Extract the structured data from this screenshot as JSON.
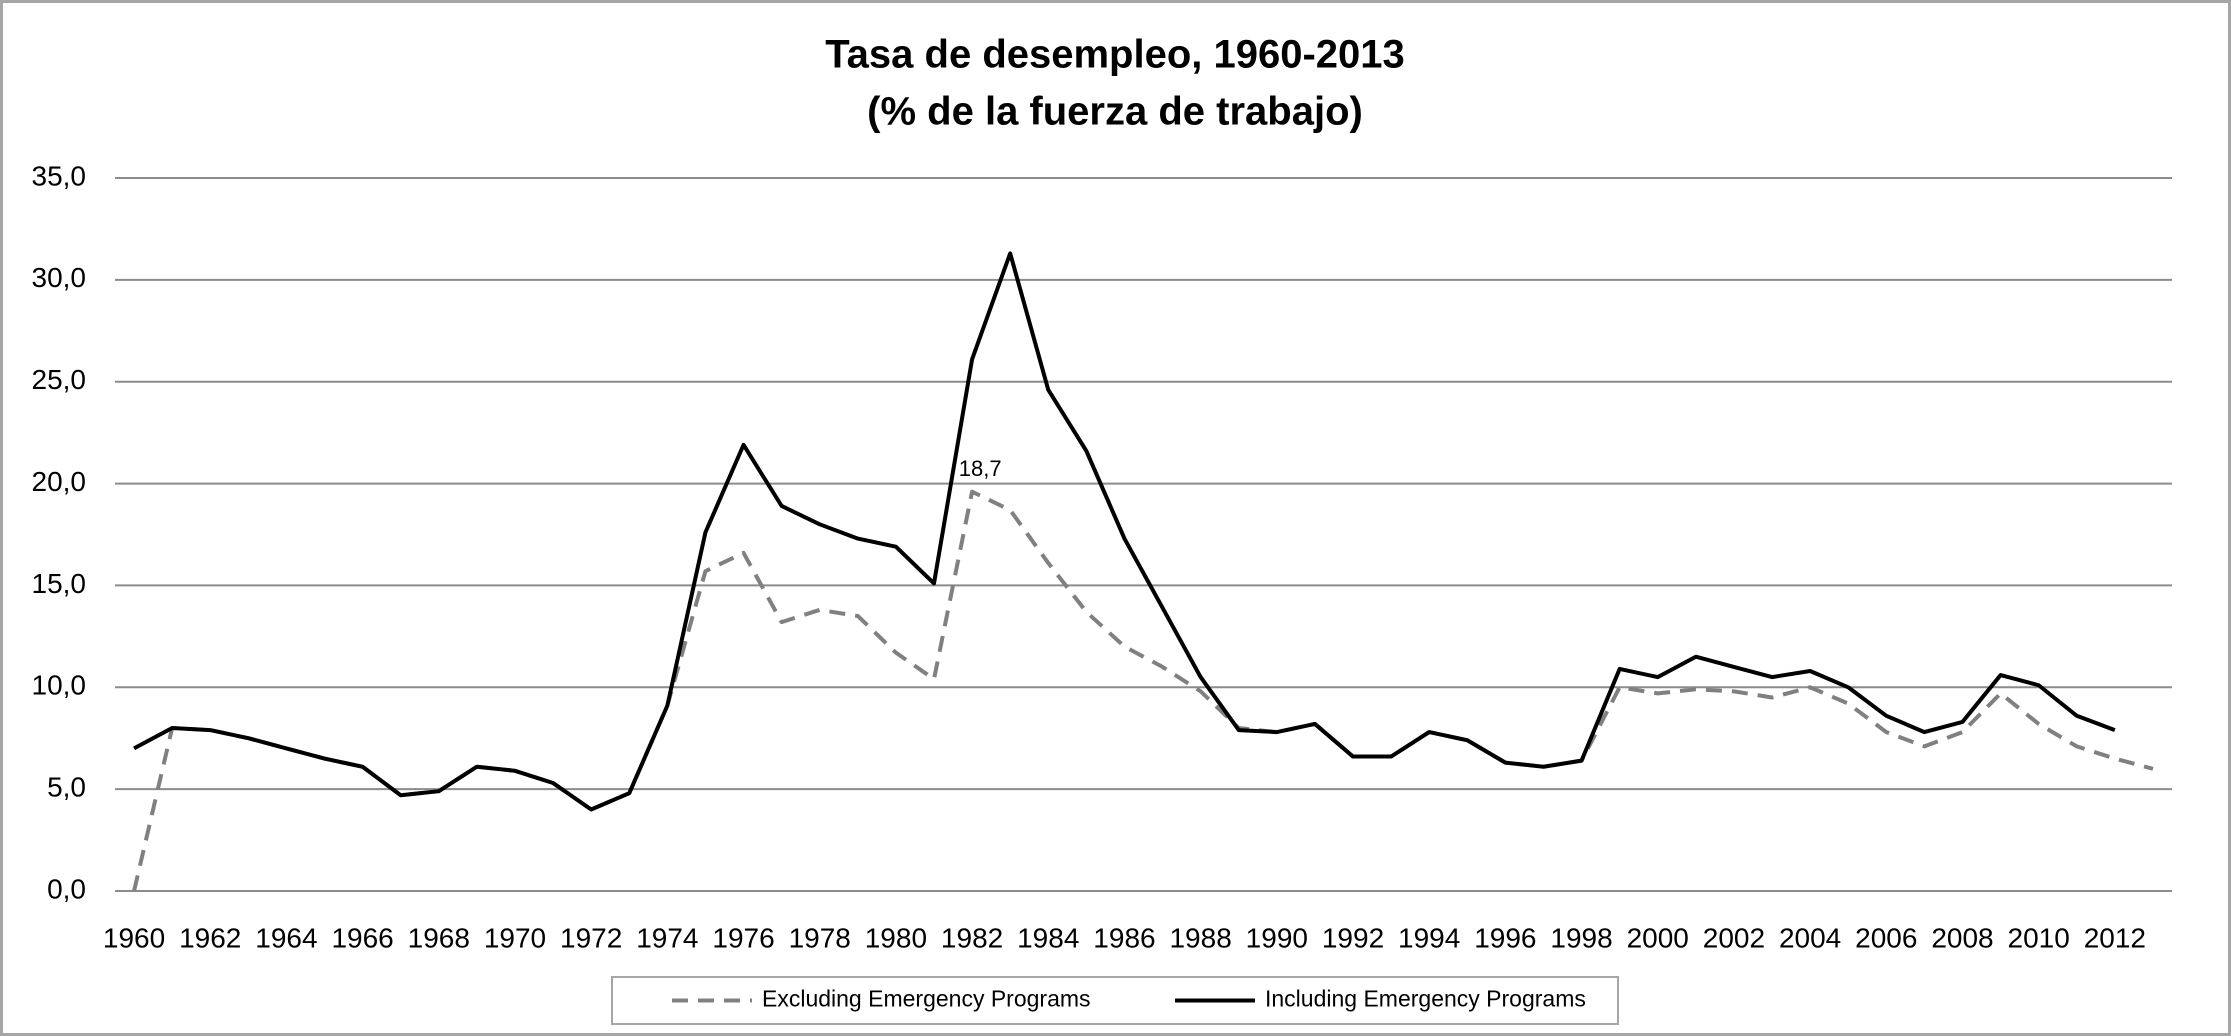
{
  "chart_data": {
    "type": "line",
    "title": "Tasa de desempleo, 1960-2013",
    "subtitle": "(% de la fuerza de trabajo)",
    "categories": [
      "1960",
      null,
      "1962",
      null,
      "1964",
      null,
      "1966",
      null,
      "1968",
      null,
      "1970",
      null,
      "1972",
      null,
      "1974",
      null,
      "1976",
      null,
      "1978",
      null,
      "1980",
      null,
      "1982",
      null,
      "1984",
      null,
      "1986",
      null,
      "1988",
      null,
      "1990",
      null,
      "1992",
      null,
      "1994",
      null,
      "1996",
      null,
      "1998",
      null,
      "2000",
      null,
      "2002",
      null,
      "2004",
      null,
      "2006",
      null,
      "2008",
      null,
      "2010",
      null,
      "2012",
      null
    ],
    "series": [
      {
        "name": "Excluding Emergency Programs",
        "color": "#808080",
        "style": "dashed",
        "values": [
          0.0,
          8.0,
          7.9,
          7.5,
          7.0,
          6.5,
          6.1,
          4.7,
          4.9,
          6.1,
          5.9,
          5.3,
          4.0,
          4.8,
          9.1,
          15.7,
          16.6,
          13.2,
          13.8,
          13.5,
          11.7,
          10.4,
          19.6,
          18.7,
          16.1,
          13.7,
          12.0,
          11.0,
          9.8,
          8.0,
          7.8,
          8.2,
          6.6,
          6.6,
          7.8,
          7.4,
          6.3,
          6.1,
          6.4,
          10.0,
          9.7,
          9.9,
          9.8,
          9.5,
          10.0,
          9.2,
          7.8,
          7.1,
          7.8,
          9.7,
          8.2,
          7.1,
          6.5,
          6.0
        ],
        "value_labels": [
          null,
          null,
          null,
          null,
          null,
          null,
          null,
          null,
          null,
          null,
          null,
          null,
          null,
          null,
          null,
          null,
          null,
          null,
          null,
          null,
          null,
          null,
          null,
          "18,7",
          null,
          null,
          null,
          null,
          null,
          null,
          null,
          null,
          null,
          null,
          null,
          null,
          null,
          null,
          null,
          null,
          null,
          null,
          null,
          null,
          null,
          null,
          null,
          null,
          null,
          null,
          null,
          null,
          null,
          null
        ]
      },
      {
        "name": "Including Emergency Programs",
        "color": "#000000",
        "style": "solid",
        "values": [
          7.0,
          8.0,
          7.9,
          7.5,
          7.0,
          6.5,
          6.1,
          4.7,
          4.9,
          6.1,
          5.9,
          5.3,
          4.0,
          4.8,
          9.1,
          17.6,
          21.9,
          18.9,
          18.0,
          17.3,
          16.9,
          15.1,
          26.1,
          31.3,
          24.6,
          21.6,
          17.3,
          13.9,
          10.5,
          7.9,
          7.8,
          8.2,
          6.6,
          6.6,
          7.8,
          7.4,
          6.3,
          6.1,
          6.4,
          10.9,
          10.5,
          11.5,
          11.0,
          10.5,
          10.8,
          10.0,
          8.6,
          7.8,
          8.3,
          10.6,
          10.1,
          8.6,
          7.9,
          null
        ]
      }
    ],
    "ylim": [
      0,
      35
    ],
    "yticks": [
      {
        "value": 0,
        "label": "0,0"
      },
      {
        "value": 5,
        "label": "5,0"
      },
      {
        "value": 10,
        "label": "10,0"
      },
      {
        "value": 15,
        "label": "15,0"
      },
      {
        "value": 20,
        "label": "20,0"
      },
      {
        "value": 25,
        "label": "25,0"
      },
      {
        "value": 30,
        "label": "30,0"
      },
      {
        "value": 35,
        "label": "35,0"
      }
    ],
    "grid": true,
    "legend": "bottom"
  }
}
